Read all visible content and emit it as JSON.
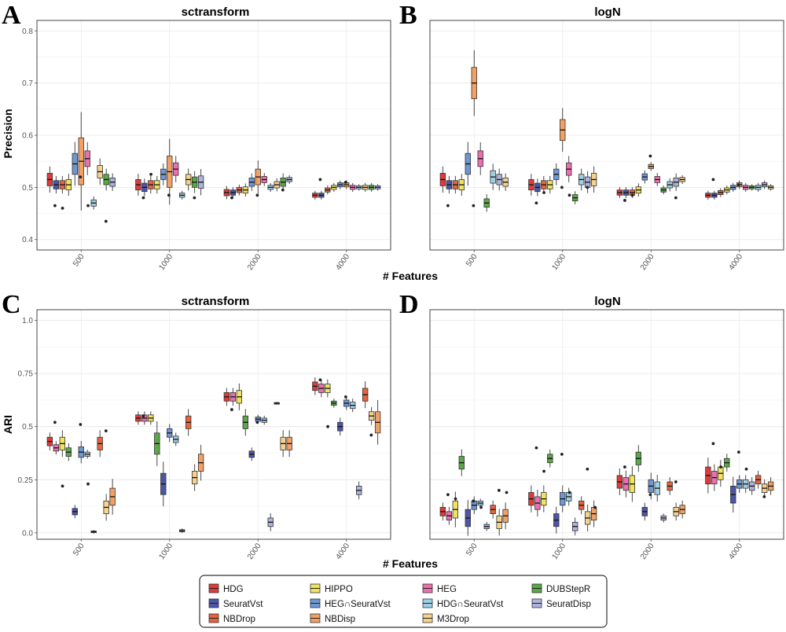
{
  "panel_labels": [
    "A",
    "B",
    "C",
    "D"
  ],
  "shared_xlabel": "# Features",
  "colors": {
    "HDG": "#e23a3a",
    "HIPPO": "#f2e35c",
    "HEG": "#ee6fae",
    "DUBStepR": "#5aa848",
    "SeuratVst": "#4d55a8",
    "HEG∩SeuratVst": "#6e97d4",
    "HDG∩SeuratVst": "#9fd0e6",
    "SeuratDisp": "#aeb3dd",
    "NBDrop": "#e8643e",
    "NBDisp": "#f3a065",
    "M3Drop": "#f6d28c"
  },
  "legend": {
    "items": [
      "HDG",
      "HIPPO",
      "HEG",
      "DUBStepR",
      "SeuratVst",
      "HEG∩SeuratVst",
      "HDG∩SeuratVst",
      "SeuratDisp",
      "NBDrop",
      "NBDisp",
      "M3Drop"
    ]
  },
  "chart_data": [
    {
      "type": "boxplot",
      "panel": "A",
      "title": "sctransform",
      "xlabel": "# Features",
      "ylabel": "Precision",
      "categories": [
        "500",
        "1000",
        "2000",
        "4000"
      ],
      "ylim": [
        0.38,
        0.82
      ],
      "yticks": [
        0.4,
        0.5,
        0.6,
        0.7,
        0.8
      ],
      "methods": [
        "HDG",
        "SeuratVst",
        "NBDrop",
        "HIPPO",
        "HEG∩SeuratVst",
        "NBDisp",
        "HEG",
        "HDG∩SeuratVst",
        "M3Drop",
        "DUBStepR",
        "SeuratDisp"
      ],
      "series": [
        {
          "category": "500",
          "medians": [
            0.515,
            0.505,
            0.505,
            0.505,
            0.545,
            0.55,
            0.555,
            0.47,
            0.53,
            0.515,
            0.51
          ],
          "spreads": [
            0.012,
            0.008,
            0.008,
            0.01,
            0.02,
            0.045,
            0.015,
            0.006,
            0.012,
            0.01,
            0.008
          ],
          "outliers": [
            0.465,
            0.52,
            0.435,
            0.46,
            0.465
          ]
        },
        {
          "category": "1000",
          "medians": [
            0.505,
            0.5,
            0.505,
            0.505,
            0.525,
            0.53,
            0.535,
            0.485,
            0.515,
            0.51,
            0.51
          ],
          "spreads": [
            0.01,
            0.008,
            0.008,
            0.008,
            0.01,
            0.03,
            0.012,
            0.004,
            0.01,
            0.01,
            0.012
          ],
          "outliers": [
            0.48,
            0.485,
            0.48,
            0.525
          ]
        },
        {
          "category": "2000",
          "medians": [
            0.49,
            0.49,
            0.495,
            0.495,
            0.51,
            0.52,
            0.515,
            0.5,
            0.505,
            0.51,
            0.515
          ],
          "spreads": [
            0.006,
            0.005,
            0.005,
            0.006,
            0.008,
            0.015,
            0.006,
            0.004,
            0.006,
            0.008,
            0.004
          ],
          "outliers": [
            0.48,
            0.485,
            0.495
          ]
        },
        {
          "category": "4000",
          "medians": [
            0.485,
            0.485,
            0.495,
            0.5,
            0.505,
            0.505,
            0.5,
            0.5,
            0.5,
            0.5,
            0.5
          ],
          "spreads": [
            0.004,
            0.004,
            0.004,
            0.004,
            0.004,
            0.004,
            0.004,
            0.003,
            0.004,
            0.004,
            0.003
          ],
          "outliers": [
            0.515,
            0.51
          ]
        }
      ]
    },
    {
      "type": "boxplot",
      "panel": "B",
      "title": "logN",
      "xlabel": "# Features",
      "ylabel": "",
      "categories": [
        "500",
        "1000",
        "2000",
        "4000"
      ],
      "ylim": [
        0.38,
        0.82
      ],
      "yticks": [],
      "methods": [
        "HDG",
        "SeuratVst",
        "NBDrop",
        "HIPPO",
        "HEG∩SeuratVst",
        "NBDisp",
        "HEG",
        "DUBStepR",
        "HDG∩SeuratVst",
        "SeuratDisp",
        "M3Drop"
      ],
      "series": [
        {
          "category": "500",
          "medians": [
            0.515,
            0.505,
            0.505,
            0.505,
            0.545,
            0.7,
            0.555,
            0.47,
            0.52,
            0.515,
            0.51
          ],
          "spreads": [
            0.012,
            0.008,
            0.008,
            0.01,
            0.02,
            0.03,
            0.015,
            0.008,
            0.012,
            0.01,
            0.008
          ],
          "outliers": [
            0.465,
            0.465
          ]
        },
        {
          "category": "1000",
          "medians": [
            0.505,
            0.5,
            0.505,
            0.505,
            0.525,
            0.61,
            0.535,
            0.48,
            0.515,
            0.51,
            0.515
          ],
          "spreads": [
            0.01,
            0.008,
            0.008,
            0.008,
            0.01,
            0.02,
            0.012,
            0.006,
            0.01,
            0.01,
            0.012
          ],
          "outliers": [
            0.47,
            0.5,
            0.5,
            0.49,
            0.485
          ]
        },
        {
          "category": "2000",
          "medians": [
            0.49,
            0.49,
            0.49,
            0.495,
            0.52,
            0.54,
            0.515,
            0.495,
            0.505,
            0.51,
            0.515
          ],
          "spreads": [
            0.005,
            0.005,
            0.005,
            0.006,
            0.006,
            0.004,
            0.006,
            0.004,
            0.006,
            0.008,
            0.004
          ],
          "outliers": [
            0.475,
            0.56,
            0.48,
            0.485
          ]
        },
        {
          "category": "4000",
          "medians": [
            0.485,
            0.485,
            0.49,
            0.495,
            0.5,
            0.505,
            0.5,
            0.5,
            0.5,
            0.505,
            0.5
          ],
          "spreads": [
            0.004,
            0.004,
            0.004,
            0.004,
            0.004,
            0.004,
            0.004,
            0.003,
            0.004,
            0.004,
            0.003
          ],
          "outliers": [
            0.515,
            0.505
          ]
        }
      ]
    },
    {
      "type": "boxplot",
      "panel": "C",
      "title": "sctransform",
      "xlabel": "# Features",
      "ylabel": "ARI",
      "categories": [
        "500",
        "1000",
        "2000",
        "4000"
      ],
      "ylim": [
        -0.03,
        1.05
      ],
      "yticks": [
        0.0,
        0.25,
        0.5,
        0.75,
        1.0
      ],
      "yticklabels": [
        "0.0",
        "0.25",
        "0.5",
        "0.75",
        "1.0"
      ],
      "methods": [
        "HDG",
        "HEG",
        "HIPPO",
        "DUBStepR",
        "SeuratVst",
        "HEG∩SeuratVst",
        "HDG∩SeuratVst",
        "SeuratDisp",
        "NBDrop",
        "M3Drop",
        "NBDisp"
      ],
      "series": [
        {
          "category": "500",
          "medians": [
            0.43,
            0.4,
            0.42,
            0.38,
            0.1,
            0.38,
            0.37,
            0.005,
            0.42,
            0.12,
            0.17
          ],
          "spreads": [
            0.02,
            0.015,
            0.03,
            0.02,
            0.015,
            0.025,
            0.01,
            0.004,
            0.03,
            0.03,
            0.04
          ],
          "outliers": [
            0.52,
            0.51,
            0.48,
            0.22,
            0.23
          ]
        },
        {
          "category": "1000",
          "medians": [
            0.54,
            0.54,
            0.54,
            0.42,
            0.23,
            0.47,
            0.44,
            0.01,
            0.52,
            0.26,
            0.33
          ],
          "spreads": [
            0.015,
            0.015,
            0.015,
            0.05,
            0.05,
            0.02,
            0.015,
            0.005,
            0.03,
            0.03,
            0.04
          ],
          "outliers": [
            0.55
          ]
        },
        {
          "category": "2000",
          "medians": [
            0.64,
            0.64,
            0.64,
            0.52,
            0.37,
            0.535,
            0.53,
            0.05,
            0.61,
            0.42,
            0.42
          ],
          "spreads": [
            0.02,
            0.02,
            0.03,
            0.03,
            0.015,
            0.01,
            0.01,
            0.02,
            0.003,
            0.03,
            0.03
          ],
          "outliers": [
            0.58,
            0.52
          ]
        },
        {
          "category": "4000",
          "medians": [
            0.69,
            0.68,
            0.68,
            0.61,
            0.5,
            0.61,
            0.6,
            0.2,
            0.65,
            0.55,
            0.52
          ],
          "spreads": [
            0.02,
            0.02,
            0.02,
            0.01,
            0.02,
            0.015,
            0.015,
            0.02,
            0.03,
            0.02,
            0.05
          ],
          "outliers": [
            0.72,
            0.64,
            0.46,
            0.5
          ]
        }
      ]
    },
    {
      "type": "boxplot",
      "panel": "D",
      "title": "logN",
      "xlabel": "# Features",
      "ylabel": "",
      "categories": [
        "500",
        "1000",
        "2000",
        "4000"
      ],
      "ylim": [
        -0.03,
        1.05
      ],
      "yticks": [],
      "methods": [
        "HDG",
        "HEG",
        "HIPPO",
        "DUBStepR",
        "SeuratVst",
        "HEG∩SeuratVst",
        "HDG∩SeuratVst",
        "SeuratDisp",
        "NBDrop",
        "M3Drop",
        "NBDisp"
      ],
      "series": [
        {
          "category": "500",
          "medians": [
            0.1,
            0.08,
            0.11,
            0.33,
            0.07,
            0.13,
            0.14,
            0.03,
            0.11,
            0.05,
            0.08
          ],
          "spreads": [
            0.02,
            0.02,
            0.04,
            0.03,
            0.04,
            0.02,
            0.01,
            0.01,
            0.02,
            0.03,
            0.03
          ],
          "outliers": [
            0.18,
            0.15,
            0.2,
            0.16,
            0.12,
            0.19
          ]
        },
        {
          "category": "1000",
          "medians": [
            0.16,
            0.14,
            0.16,
            0.35,
            0.06,
            0.16,
            0.17,
            0.03,
            0.13,
            0.07,
            0.09
          ],
          "spreads": [
            0.03,
            0.03,
            0.03,
            0.02,
            0.03,
            0.03,
            0.02,
            0.02,
            0.02,
            0.03,
            0.03
          ],
          "outliers": [
            0.4,
            0.37,
            0.3,
            0.29,
            0.19,
            0.12
          ]
        },
        {
          "category": "2000",
          "medians": [
            0.24,
            0.23,
            0.23,
            0.35,
            0.1,
            0.22,
            0.21,
            0.07,
            0.22,
            0.1,
            0.11
          ],
          "spreads": [
            0.03,
            0.03,
            0.04,
            0.03,
            0.02,
            0.03,
            0.03,
            0.01,
            0.02,
            0.02,
            0.02
          ],
          "outliers": [
            0.31,
            0.18,
            0.24
          ]
        },
        {
          "category": "4000",
          "medians": [
            0.27,
            0.26,
            0.28,
            0.33,
            0.18,
            0.23,
            0.23,
            0.22,
            0.25,
            0.21,
            0.22
          ],
          "spreads": [
            0.04,
            0.03,
            0.03,
            0.02,
            0.04,
            0.02,
            0.02,
            0.02,
            0.02,
            0.02,
            0.02
          ],
          "outliers": [
            0.42,
            0.38,
            0.17,
            0.31,
            0.3
          ]
        }
      ]
    }
  ]
}
